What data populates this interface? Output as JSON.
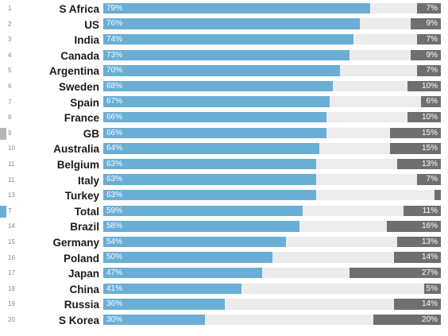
{
  "chart_data": {
    "type": "bar",
    "orientation": "horizontal",
    "stacked": "diverging",
    "colors": {
      "positive": "#6aaed6",
      "negative": "#6f6f6f",
      "track": "#ececec"
    },
    "rows": [
      {
        "rank": "1",
        "country": "S Africa",
        "positive": 79,
        "negative": 7,
        "positive_label": "79%",
        "negative_label": "7%"
      },
      {
        "rank": "2",
        "country": "US",
        "positive": 76,
        "negative": 9,
        "positive_label": "76%",
        "negative_label": "9%"
      },
      {
        "rank": "3",
        "country": "India",
        "positive": 74,
        "negative": 7,
        "positive_label": "74%",
        "negative_label": "7%"
      },
      {
        "rank": "4",
        "country": "Canada",
        "positive": 73,
        "negative": 9,
        "positive_label": "73%",
        "negative_label": "9%"
      },
      {
        "rank": "5",
        "country": "Argentina",
        "positive": 70,
        "negative": 7,
        "positive_label": "70%",
        "negative_label": "7%"
      },
      {
        "rank": "6",
        "country": "Sweden",
        "positive": 68,
        "negative": 10,
        "positive_label": "68%",
        "negative_label": "10%"
      },
      {
        "rank": "7",
        "country": "Spain",
        "positive": 67,
        "negative": 6,
        "positive_label": "67%",
        "negative_label": "6%"
      },
      {
        "rank": "8",
        "country": "France",
        "positive": 66,
        "negative": 10,
        "positive_label": "66%",
        "negative_label": "10%"
      },
      {
        "rank": "9",
        "country": "GB",
        "positive": 66,
        "negative": 15,
        "positive_label": "66%",
        "negative_label": "15%",
        "marker": "grey"
      },
      {
        "rank": "10",
        "country": "Australia",
        "positive": 64,
        "negative": 15,
        "positive_label": "64%",
        "negative_label": "15%"
      },
      {
        "rank": "11",
        "country": "Belgium",
        "positive": 63,
        "negative": 13,
        "positive_label": "63%",
        "negative_label": "13%"
      },
      {
        "rank": "11",
        "country": "Italy",
        "positive": 63,
        "negative": 7,
        "positive_label": "63%",
        "negative_label": "7%"
      },
      {
        "rank": "13",
        "country": "Turkey",
        "positive": 63,
        "negative": 2,
        "positive_label": "63%",
        "negative_label": ""
      },
      {
        "rank": "T",
        "country": "Total",
        "positive": 59,
        "negative": 11,
        "positive_label": "59%",
        "negative_label": "11%",
        "marker": "blue"
      },
      {
        "rank": "14",
        "country": "Brazil",
        "positive": 58,
        "negative": 16,
        "positive_label": "58%",
        "negative_label": "16%"
      },
      {
        "rank": "15",
        "country": "Germany",
        "positive": 54,
        "negative": 13,
        "positive_label": "54%",
        "negative_label": "13%"
      },
      {
        "rank": "16",
        "country": "Poland",
        "positive": 50,
        "negative": 14,
        "positive_label": "50%",
        "negative_label": "14%"
      },
      {
        "rank": "17",
        "country": "Japan",
        "positive": 47,
        "negative": 27,
        "positive_label": "47%",
        "negative_label": "27%"
      },
      {
        "rank": "18",
        "country": "China",
        "positive": 41,
        "negative": 5,
        "positive_label": "41%",
        "negative_label": "5%"
      },
      {
        "rank": "19",
        "country": "Russia",
        "positive": 36,
        "negative": 14,
        "positive_label": "36%",
        "negative_label": "14%"
      },
      {
        "rank": "20",
        "country": "S Korea",
        "positive": 30,
        "negative": 20,
        "positive_label": "30%",
        "negative_label": "20%"
      }
    ]
  }
}
